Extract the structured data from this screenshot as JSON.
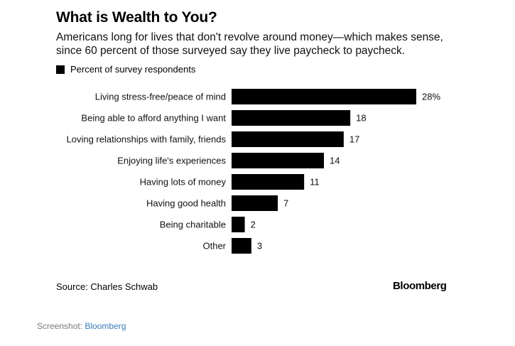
{
  "header": {
    "title": "What is Wealth to You?",
    "subtitle_line1": "Americans long for lives that don't revolve around money—which makes sense,",
    "subtitle_line2": "since 60 percent of those surveyed say they live paycheck to paycheck."
  },
  "legend": {
    "label": "Percent of survey respondents"
  },
  "chart_data": {
    "type": "bar",
    "orientation": "horizontal",
    "categories": [
      "Living stress-free/peace of mind",
      "Being able to afford anything I want",
      "Loving relationships with family, friends",
      "Enjoying life's experiences",
      "Having lots of money",
      "Having good health",
      "Being charitable",
      "Other"
    ],
    "series": [
      {
        "name": "Percent of survey respondents",
        "values": [
          28,
          18,
          17,
          14,
          11,
          7,
          2,
          3
        ]
      }
    ],
    "data_labels": [
      "28%",
      "18",
      "17",
      "14",
      "11",
      "7",
      "2",
      "3"
    ],
    "xlim": [
      0,
      28
    ],
    "grid": false,
    "legend_position": "top-left",
    "bar_color": "#000000"
  },
  "footer": {
    "source": "Source: Charles Schwab",
    "brand": "Bloomberg"
  },
  "caption": {
    "prefix": "Screenshot: ",
    "link": "Bloomberg"
  }
}
